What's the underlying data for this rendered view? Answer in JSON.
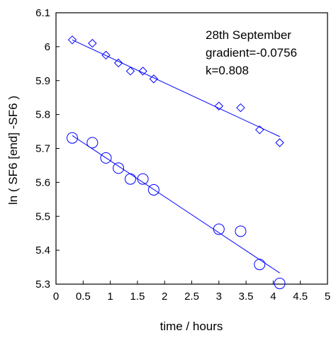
{
  "chart_data": {
    "type": "scatter",
    "title": "",
    "xlabel": "time / hours",
    "ylabel": "ln ( SF6 [end] -SF6 )",
    "xlim": [
      0,
      5
    ],
    "ylim": [
      5.3,
      6.1
    ],
    "xticks": [
      "0",
      "0.5",
      "1",
      "1.5",
      "2",
      "2.5",
      "3",
      "3.5",
      "4",
      "4.5",
      "5"
    ],
    "yticks": [
      "5.3",
      "5.4",
      "5.5",
      "5.6",
      "5.7",
      "5.8",
      "5.9",
      "6",
      "6.1"
    ],
    "grid": false,
    "annotations": [
      "28th September",
      "gradient=-0.0756",
      "k=0.808"
    ],
    "series": [
      {
        "marker": "diamond",
        "color": "#0000ff",
        "x": [
          0.3,
          0.67,
          0.92,
          1.15,
          1.37,
          1.6,
          1.8,
          3.0,
          3.4,
          3.75,
          4.12
        ],
        "y": [
          6.02,
          6.01,
          5.975,
          5.952,
          5.928,
          5.928,
          5.905,
          5.825,
          5.82,
          5.755,
          5.717
        ],
        "fit": {
          "x": [
            0.3,
            4.12
          ],
          "y": [
            6.02,
            5.735
          ]
        }
      },
      {
        "marker": "circle",
        "color": "#0000ff",
        "x": [
          0.3,
          0.67,
          0.92,
          1.15,
          1.37,
          1.6,
          1.8,
          3.0,
          3.4,
          3.75,
          4.12
        ],
        "y": [
          5.731,
          5.717,
          5.672,
          5.642,
          5.61,
          5.61,
          5.578,
          5.462,
          5.456,
          5.358,
          5.302
        ],
        "fit": {
          "x": [
            0.3,
            4.12
          ],
          "y": [
            5.738,
            5.333
          ]
        }
      }
    ]
  }
}
